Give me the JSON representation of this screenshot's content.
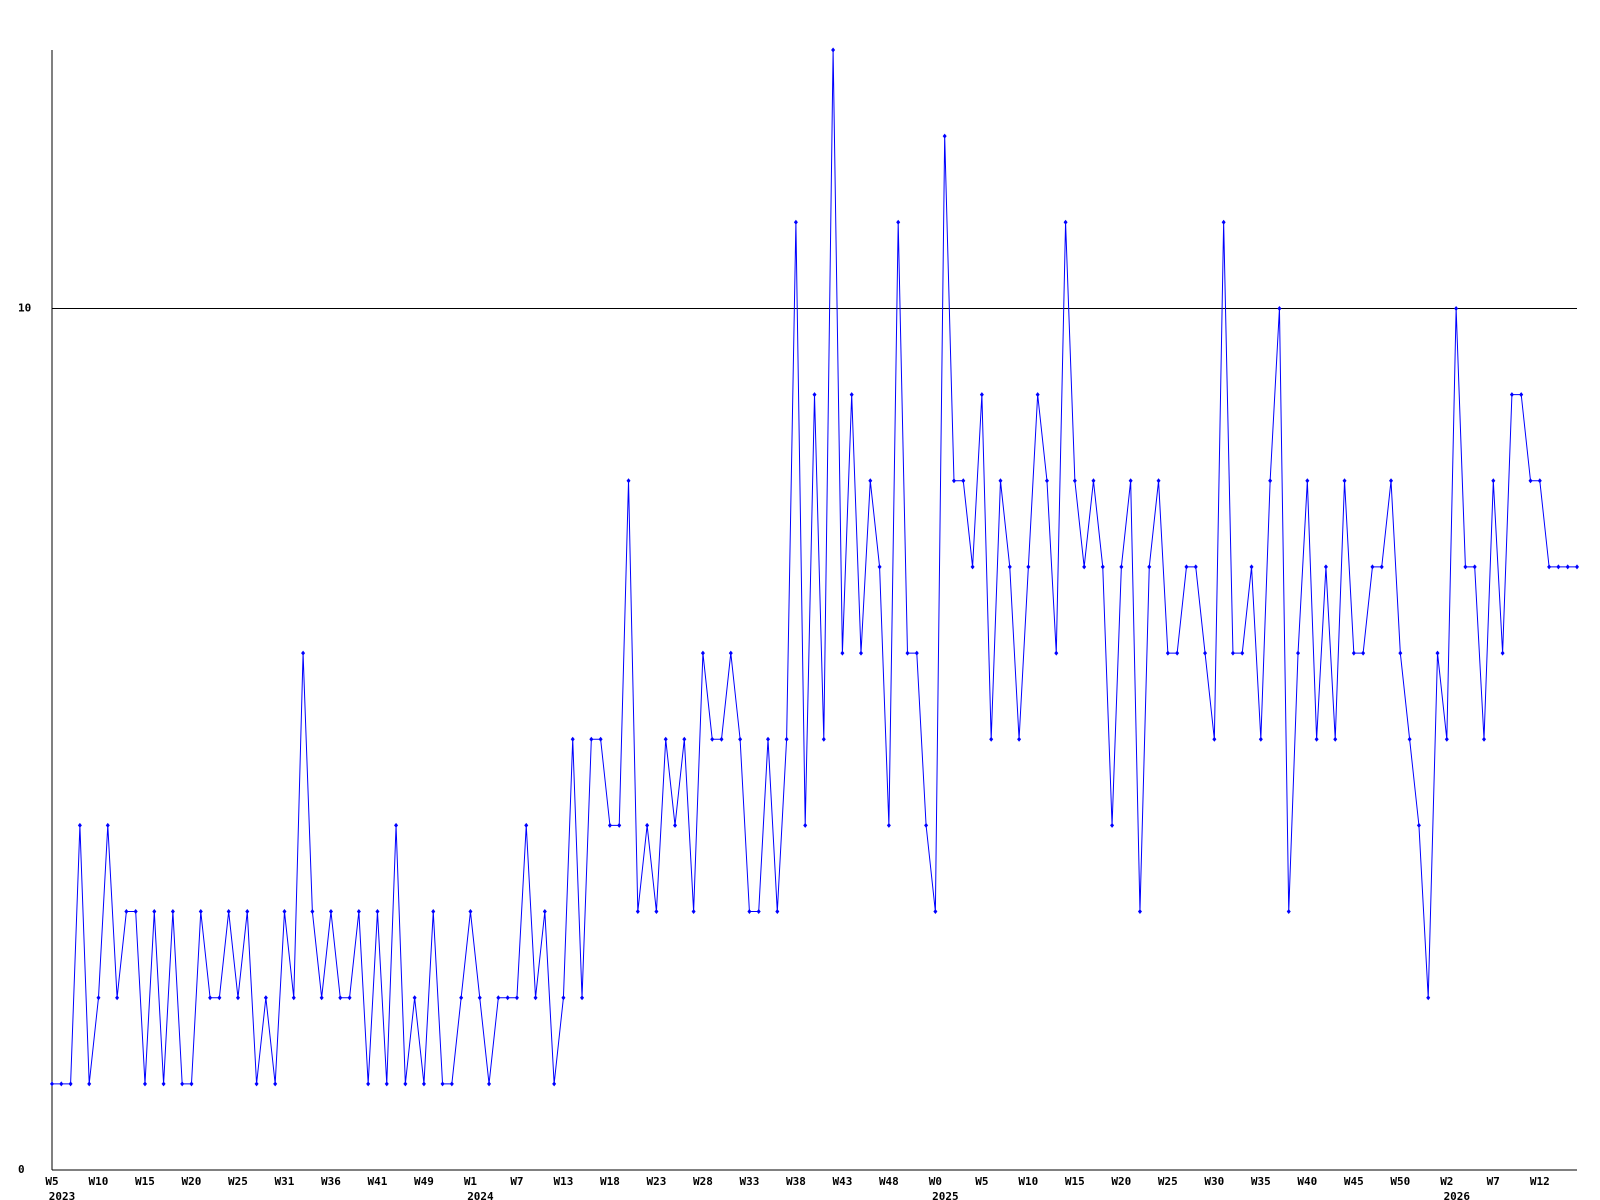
{
  "chart_data": {
    "type": "line",
    "color": "#0000ff",
    "grid": true,
    "ylim": [
      0,
      13
    ],
    "yticks": [
      0,
      10
    ],
    "categories": [
      "W5",
      null,
      null,
      null,
      null,
      "W10",
      null,
      null,
      null,
      null,
      "W15",
      null,
      null,
      null,
      null,
      "W20",
      null,
      null,
      null,
      null,
      "W25",
      null,
      null,
      null,
      null,
      "W31",
      null,
      null,
      null,
      null,
      "W36",
      null,
      null,
      null,
      null,
      "W41",
      null,
      null,
      null,
      null,
      "W49",
      null,
      null,
      null,
      null,
      "W1",
      null,
      null,
      null,
      null,
      "W7",
      null,
      null,
      null,
      null,
      "W13",
      null,
      null,
      null,
      null,
      "W18",
      null,
      null,
      null,
      null,
      "W23",
      null,
      null,
      null,
      null,
      "W28",
      null,
      null,
      null,
      null,
      "W33",
      null,
      null,
      null,
      null,
      "W38",
      null,
      null,
      null,
      null,
      "W43",
      null,
      null,
      null,
      null,
      "W48",
      null,
      null,
      null,
      null,
      "W0",
      null,
      null,
      null,
      null,
      "W5",
      null,
      null,
      null,
      null,
      "W10",
      null,
      null,
      null,
      null,
      "W15",
      null,
      null,
      null,
      null,
      "W20",
      null,
      null,
      null,
      null,
      "W25",
      null,
      null,
      null,
      null,
      "W30",
      null,
      null,
      null,
      null,
      "W35",
      null,
      null,
      null,
      null,
      "W40",
      null,
      null,
      null,
      null,
      "W45",
      null,
      null,
      null,
      null,
      "W50",
      null,
      null,
      null,
      null,
      "W2",
      null,
      null,
      null,
      null,
      "W7",
      null,
      null,
      null,
      null,
      "W12",
      null,
      null,
      null,
      null
    ],
    "category_years": [
      "2023",
      null,
      null,
      null,
      null,
      null,
      null,
      null,
      null,
      null,
      null,
      null,
      null,
      null,
      null,
      null,
      null,
      null,
      null,
      null,
      null,
      null,
      null,
      null,
      null,
      null,
      null,
      null,
      null,
      null,
      null,
      null,
      null,
      null,
      null,
      null,
      null,
      null,
      null,
      null,
      null,
      null,
      null,
      null,
      null,
      "2024",
      null,
      null,
      null,
      null,
      null,
      null,
      null,
      null,
      null,
      null,
      null,
      null,
      null,
      null,
      null,
      null,
      null,
      null,
      null,
      null,
      null,
      null,
      null,
      null,
      null,
      null,
      null,
      null,
      null,
      null,
      null,
      null,
      null,
      null,
      null,
      null,
      null,
      null,
      null,
      null,
      null,
      null,
      null,
      null,
      null,
      null,
      null,
      null,
      null,
      "2025",
      null,
      null,
      null,
      null,
      null,
      null,
      null,
      null,
      null,
      null,
      null,
      null,
      null,
      null,
      null,
      null,
      null,
      null,
      null,
      null,
      null,
      null,
      null,
      null,
      null,
      null,
      null,
      null,
      null,
      null,
      null,
      null,
      null,
      null,
      null,
      null,
      null,
      null,
      null,
      null,
      null,
      null,
      null,
      null,
      null,
      null,
      null,
      null,
      null,
      null,
      null,
      null,
      null,
      null,
      "2026",
      null,
      null,
      null,
      null,
      null,
      null,
      null,
      null,
      null,
      null,
      null,
      null,
      null,
      null
    ],
    "values": [
      1,
      1,
      1,
      4,
      1,
      2,
      4,
      2,
      3,
      3,
      1,
      3,
      1,
      3,
      1,
      1,
      3,
      2,
      2,
      3,
      2,
      3,
      1,
      2,
      1,
      3,
      2,
      6,
      3,
      2,
      3,
      2,
      2,
      3,
      1,
      3,
      1,
      4,
      1,
      2,
      1,
      3,
      1,
      1,
      2,
      3,
      2,
      1,
      2,
      2,
      2,
      4,
      2,
      3,
      1,
      2,
      5,
      2,
      5,
      5,
      4,
      4,
      8,
      3,
      4,
      3,
      5,
      4,
      5,
      3,
      6,
      5,
      5,
      6,
      5,
      3,
      3,
      5,
      3,
      5,
      11,
      4,
      9,
      5,
      13,
      6,
      9,
      6,
      8,
      7,
      4,
      11,
      6,
      6,
      4,
      3,
      12,
      8,
      8,
      7,
      9,
      5,
      8,
      7,
      5,
      7,
      9,
      8,
      6,
      11,
      8,
      7,
      8,
      7,
      4,
      7,
      8,
      3,
      7,
      8,
      6,
      6,
      7,
      7,
      6,
      5,
      11,
      6,
      6,
      7,
      5,
      8,
      10,
      3,
      6,
      8,
      5,
      7,
      5,
      8,
      6,
      6,
      7,
      7,
      8,
      6,
      5,
      4,
      2,
      6,
      5,
      10,
      7,
      7,
      5,
      8,
      6,
      9,
      9,
      8,
      8,
      7,
      7,
      7,
      7
    ]
  }
}
